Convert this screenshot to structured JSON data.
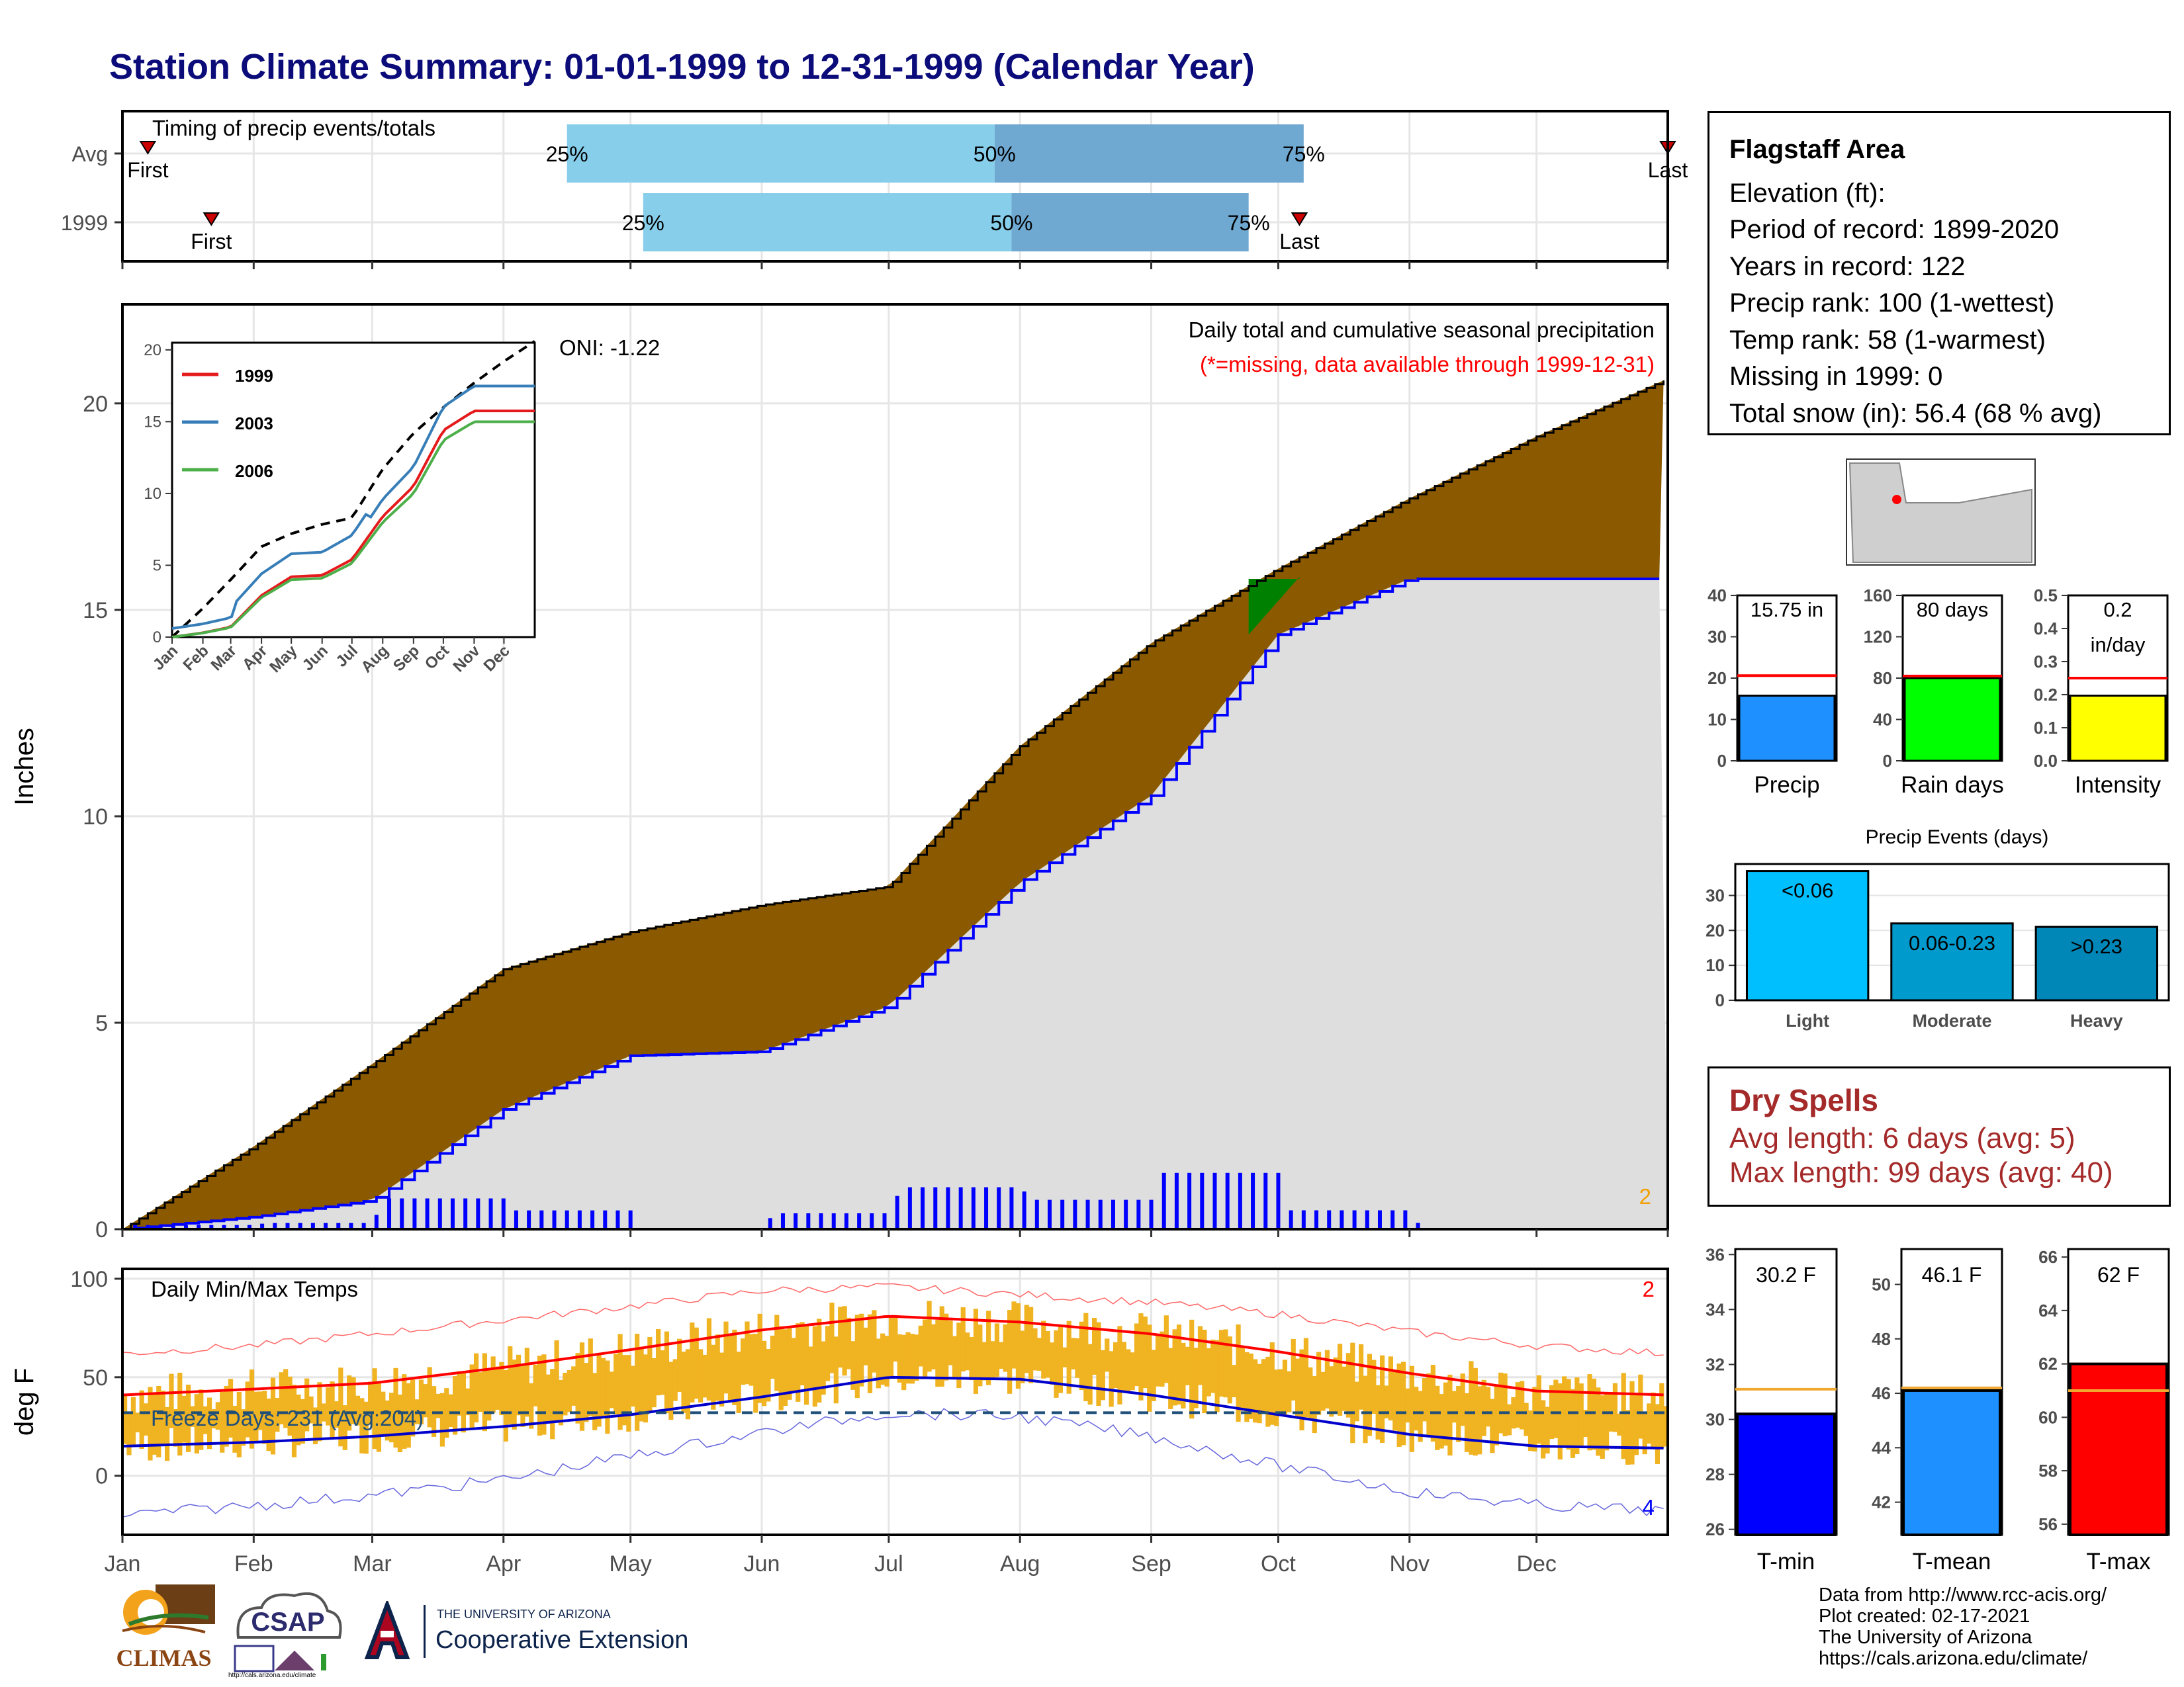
{
  "title": "Station Climate Summary: 01-01-1999 to 12-31-1999 (Calendar Year)",
  "timing": {
    "title": "Timing of precip events/totals",
    "rows": [
      {
        "label": "Avg",
        "first": "First",
        "last": "Last",
        "p25": "25%",
        "p50": "50%",
        "p75": "75%",
        "first_doy": 6,
        "q25_doy": 105,
        "q50_doy": 206,
        "q75_doy": 279,
        "last_doy": 365
      },
      {
        "label": "1999",
        "first": "First",
        "last": "Last",
        "p25": "25%",
        "p50": "50%",
        "p75": "75%",
        "first_doy": 21,
        "q25_doy": 123,
        "q50_doy": 210,
        "q75_doy": 266,
        "last_doy": 278
      }
    ]
  },
  "precip_panel": {
    "ylabel": "Inches",
    "yticks": [
      0,
      5,
      10,
      15,
      20
    ],
    "ylim": [
      0,
      22.4
    ],
    "note1": "Daily total and cumulative seasonal precipitation",
    "note2": "(*=missing, data available through 1999-12-31)",
    "oni": "ONI: -1.22",
    "corner_count": "2",
    "colors": {
      "above_avg": "#8b5a00",
      "below_avg": "#008000",
      "obs_line": "#0000ff",
      "fill": "#dedede",
      "normal_line": "#000000"
    }
  },
  "inset": {
    "yticks": [
      0,
      5,
      10,
      15,
      20
    ],
    "months": [
      "Jan",
      "Feb",
      "Mar",
      "Apr",
      "May",
      "Jun",
      "Jul",
      "Aug",
      "Sep",
      "Oct",
      "Nov",
      "Dec"
    ],
    "legend": [
      {
        "name": "1999",
        "color": "#e41a1c"
      },
      {
        "name": "2003",
        "color": "#377eb8"
      },
      {
        "name": "2006",
        "color": "#4daf4a"
      }
    ]
  },
  "temp_panel": {
    "ylabel": "deg F",
    "title": "Daily Min/Max Temps",
    "yticks": [
      0,
      50,
      100
    ],
    "freeze": "Freeze Days: 231 (Avg:204)",
    "freeze_line": 32,
    "max_records": "2",
    "min_records": "4",
    "colors": {
      "bars": "#f0b321",
      "max_line": "#ff0000",
      "min_line": "#0000cc",
      "freeze": "#1f4e79"
    }
  },
  "months": [
    "Jan",
    "Feb",
    "Mar",
    "Apr",
    "May",
    "Jun",
    "Jul",
    "Aug",
    "Sep",
    "Oct",
    "Nov",
    "Dec"
  ],
  "info": {
    "station": "Flagstaff Area",
    "lines": [
      "Elevation (ft):",
      "Period of record: 1899-2020",
      "Years in record: 122",
      "Precip rank: 100 (1-wettest)",
      "Temp rank: 58 (1-warmest)",
      "Missing in 1999: 0",
      "Total snow (in): 56.4 (68 % avg)"
    ]
  },
  "summary_bars": [
    {
      "name": "Precip",
      "label": "15.75 in",
      "value": 15.75,
      "avg": 20.6,
      "ymax": 40,
      "ticks": [
        0,
        10,
        20,
        30,
        40
      ],
      "color": "#1e90ff"
    },
    {
      "name": "Rain days",
      "label": "80 days",
      "value": 80,
      "avg": 82,
      "ymax": 160,
      "ticks": [
        0,
        40,
        80,
        120,
        160
      ],
      "color": "#00ff00"
    },
    {
      "name": "Intensity",
      "label": "0.2",
      "label2": "in/day",
      "value": 0.197,
      "avg": 0.25,
      "ymax": 0.5,
      "ticks": [
        "0.0",
        "0.1",
        "0.2",
        "0.3",
        "0.4",
        "0.5"
      ],
      "color": "#ffff00"
    }
  ],
  "events": {
    "title": "Precip Events (days)",
    "categories": [
      "Light",
      "Moderate",
      "Heavy"
    ],
    "labels": [
      "<0.06",
      "0.06-0.23",
      ">0.23"
    ],
    "values": [
      37,
      22,
      21
    ],
    "ticks": [
      0,
      10,
      20,
      30
    ],
    "colors": [
      "#00bfff",
      "#009acd",
      "#0087b8"
    ]
  },
  "dry": {
    "title": "Dry Spells",
    "avg": "Avg length: 6 days (avg: 5)",
    "max": "Max length: 99 days (avg: 40)"
  },
  "temp_bars": [
    {
      "name": "T-min",
      "label": "30.2 F",
      "value": 30.2,
      "avg": 31.1,
      "ymin": 25.8,
      "ymax": 36.2,
      "ticks": [
        26,
        28,
        30,
        32,
        34,
        36
      ],
      "color": "#0000ff"
    },
    {
      "name": "T-mean",
      "label": "46.1 F",
      "value": 46.1,
      "avg": 46.2,
      "ymin": 40.8,
      "ymax": 51.3,
      "ticks": [
        42,
        44,
        46,
        48,
        50
      ],
      "color": "#1e90ff"
    },
    {
      "name": "T-max",
      "label": "62 F",
      "value": 62.0,
      "avg": 61.0,
      "ymin": 55.6,
      "ymax": 66.3,
      "ticks": [
        56,
        58,
        60,
        62,
        64,
        66
      ],
      "color": "#ff0000"
    }
  ],
  "credits": [
    "Data from http://www.rcc-acis.org/",
    "Plot created: 02-17-2021",
    "The University of Arizona",
    "https://cals.arizona.edu/climate/"
  ],
  "logos": {
    "climas": "CLIMAS",
    "csap": "CSAP",
    "csap_url": "http://cals.arizona.edu/climate",
    "ua_line1": "THE UNIVERSITY OF ARIZONA",
    "ua_line2": "Cooperative Extension"
  },
  "chart_data": [
    {
      "type": "area",
      "title": "Daily total and cumulative seasonal precipitation",
      "ylabel": "Inches",
      "ylim": [
        0,
        22.4
      ],
      "x": [
        "Jan",
        "Feb",
        "Mar",
        "Apr",
        "May",
        "Jun",
        "Jul",
        "Aug",
        "Sep",
        "Oct",
        "Nov",
        "Dec",
        "Dec31"
      ],
      "series": [
        {
          "name": "normal cumulative",
          "values": [
            0,
            2.0,
            4.0,
            6.3,
            7.2,
            7.85,
            8.3,
            11.7,
            14.2,
            16.0,
            17.7,
            19.2,
            20.6
          ]
        },
        {
          "name": "1999 cumulative",
          "values": [
            0,
            0.3,
            0.7,
            2.9,
            4.2,
            4.3,
            5.4,
            8.4,
            10.5,
            14.4,
            15.75,
            15.75,
            15.75
          ]
        }
      ]
    },
    {
      "type": "line",
      "title": "Daily Min/Max Temps",
      "ylabel": "deg F",
      "ylim": [
        -30,
        100
      ],
      "x": [
        "Jan",
        "Feb",
        "Mar",
        "Apr",
        "May",
        "Jun",
        "Jul",
        "Aug",
        "Sep",
        "Oct",
        "Nov",
        "Dec",
        "Dec31"
      ],
      "series": [
        {
          "name": "normal max",
          "values": [
            41,
            44,
            47,
            55,
            64,
            74,
            81,
            78,
            72,
            63,
            52,
            43,
            41
          ]
        },
        {
          "name": "normal min",
          "values": [
            15,
            17,
            20,
            25,
            31,
            40,
            50,
            49,
            41,
            31,
            21,
            15,
            14
          ]
        },
        {
          "name": "record high",
          "values": [
            62,
            66,
            72,
            79,
            86,
            94,
            96,
            92,
            88,
            82,
            73,
            66,
            62
          ]
        },
        {
          "name": "record low",
          "values": [
            -20,
            -15,
            -10,
            -2,
            10,
            22,
            32,
            30,
            20,
            5,
            -8,
            -15,
            -18
          ]
        }
      ]
    }
  ]
}
